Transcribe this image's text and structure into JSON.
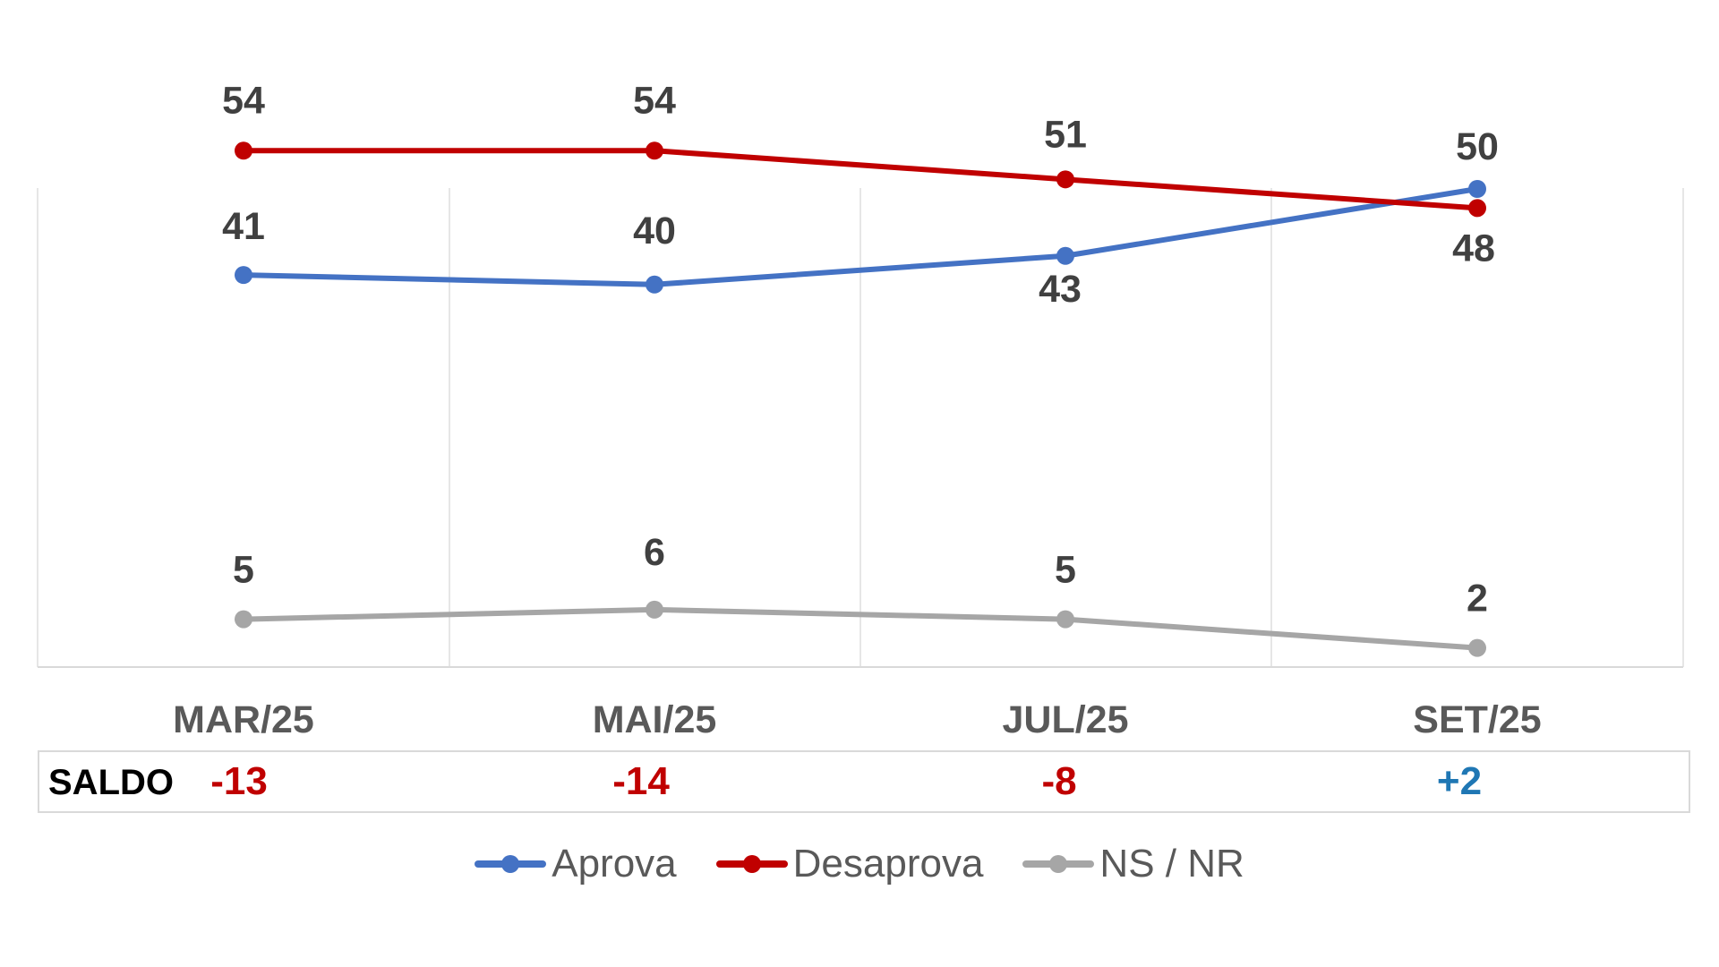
{
  "chart_data": {
    "type": "line",
    "categories": [
      "MAR/25",
      "MAI/25",
      "JUL/25",
      "SET/25"
    ],
    "series": [
      {
        "name": "Aprova",
        "values": [
          41,
          40,
          43,
          50
        ],
        "color": "#4472c4"
      },
      {
        "name": "Desaprova",
        "values": [
          54,
          54,
          51,
          48
        ],
        "color": "#c00000"
      },
      {
        "name": "NS / NR",
        "values": [
          5,
          6,
          5,
          2
        ],
        "color": "#a6a6a6"
      }
    ],
    "ylim": [
      0,
      60
    ],
    "grid": "vertical",
    "legend": "bottom-center"
  },
  "saldo": {
    "label": "SALDO",
    "values": [
      {
        "text": "-13",
        "color": "#c00000"
      },
      {
        "text": "-14",
        "color": "#c00000"
      },
      {
        "text": "-8",
        "color": "#c00000"
      },
      {
        "text": "+2",
        "color": "#1f77b4"
      }
    ]
  }
}
